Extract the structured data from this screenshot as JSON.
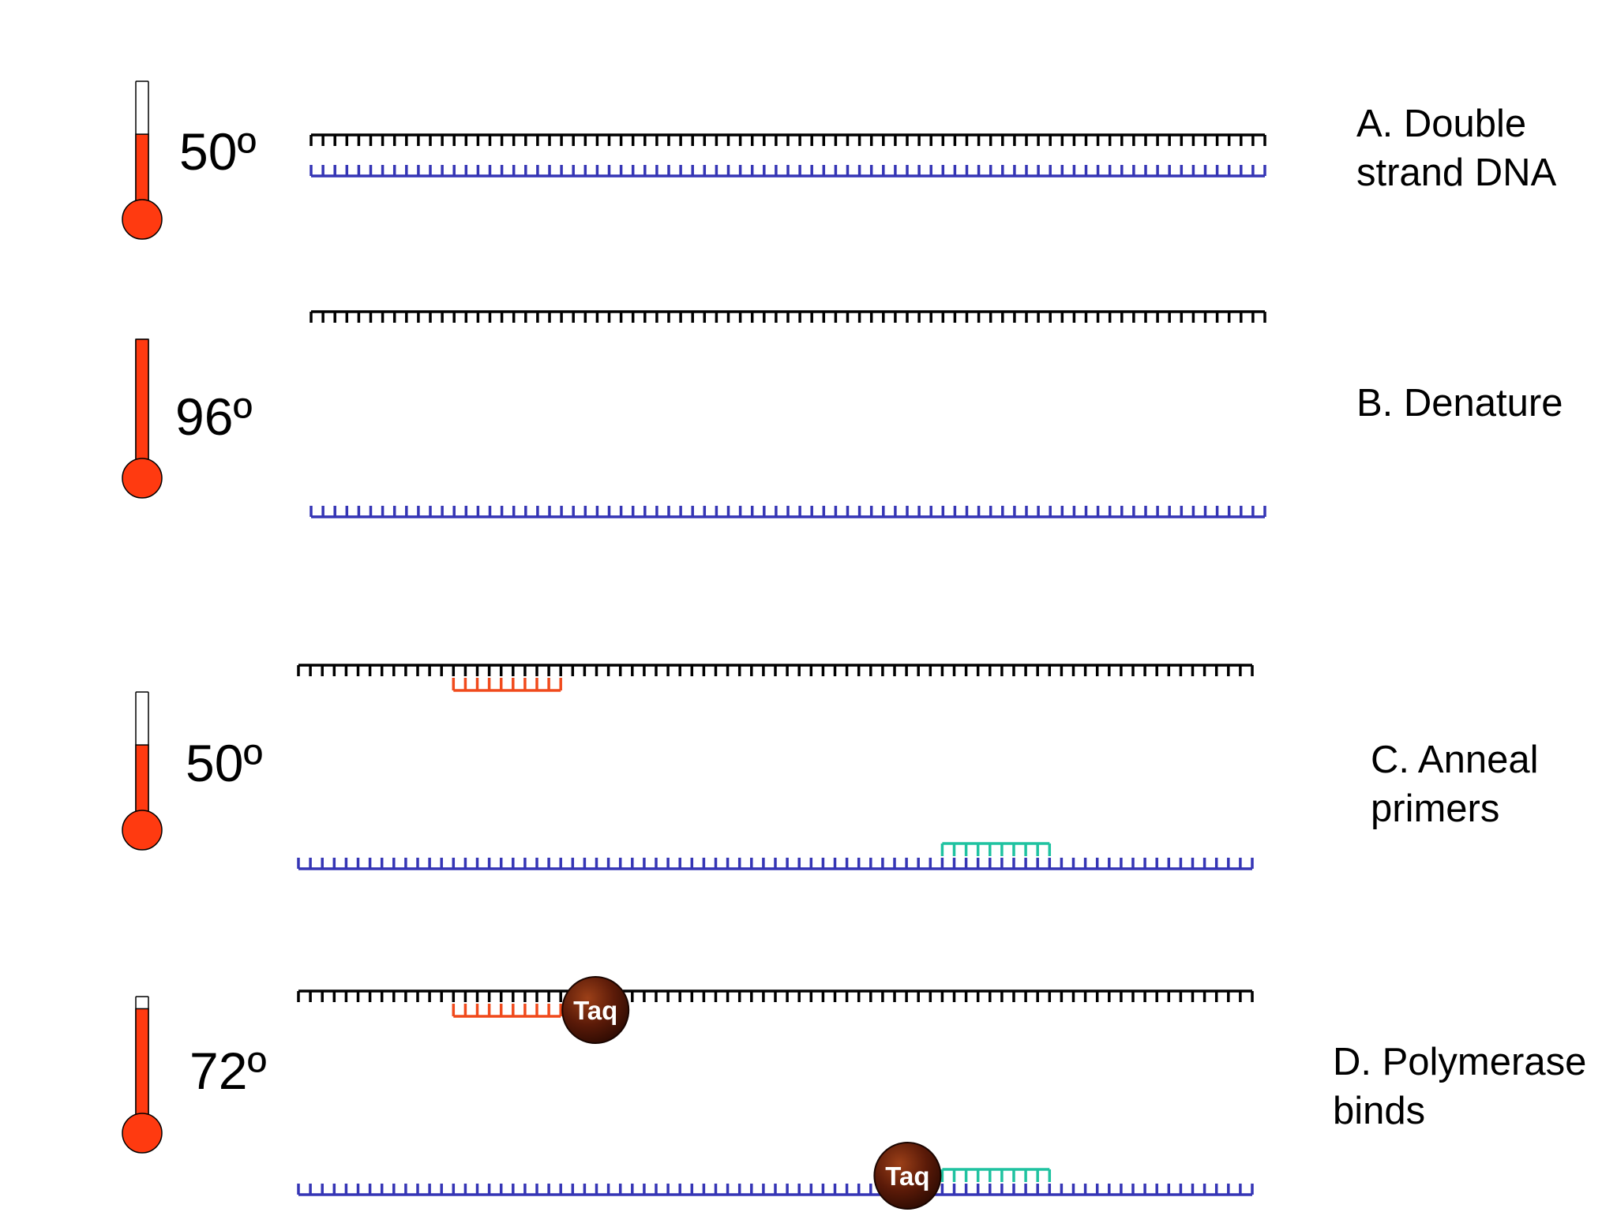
{
  "colors": {
    "template_strand": "#000000",
    "complement_strand": "#3535b5",
    "forward_primer": "#f04a1c",
    "reverse_primer": "#1fc2a0",
    "thermometer_fill": "#ff3a10",
    "taq": "#5a1a08"
  },
  "panels": [
    {
      "id": "A",
      "temperature": "50º",
      "label_lines": [
        "A. Double",
        "strand DNA"
      ],
      "thermometer_level": 0.57,
      "primers": [],
      "polymerases": []
    },
    {
      "id": "B",
      "temperature": "96º",
      "label_lines": [
        "B. Denature"
      ],
      "thermometer_level": 1.0,
      "primers": [],
      "polymerases": []
    },
    {
      "id": "C",
      "temperature": "50º",
      "label_lines": [
        "C. Anneal",
        "primers"
      ],
      "thermometer_level": 0.57,
      "primers": [
        {
          "name": "forward-primer",
          "strand": "top",
          "start_tooth": 13,
          "length_teeth": 9
        },
        {
          "name": "reverse-primer",
          "strand": "bottom",
          "start_tooth": 54,
          "length_teeth": 9
        }
      ],
      "polymerases": []
    },
    {
      "id": "D",
      "temperature": "72º",
      "label_lines": [
        "D. Polymerase",
        "binds"
      ],
      "thermometer_level": 0.9,
      "primers": [
        {
          "name": "forward-primer",
          "strand": "top",
          "start_tooth": 13,
          "length_teeth": 9
        },
        {
          "name": "reverse-primer",
          "strand": "bottom",
          "start_tooth": 54,
          "length_teeth": 9
        }
      ],
      "polymerases": [
        {
          "label": "Taq",
          "strand": "top",
          "side": "after-primer"
        },
        {
          "label": "Taq",
          "strand": "bottom",
          "side": "before-primer"
        }
      ]
    }
  ]
}
